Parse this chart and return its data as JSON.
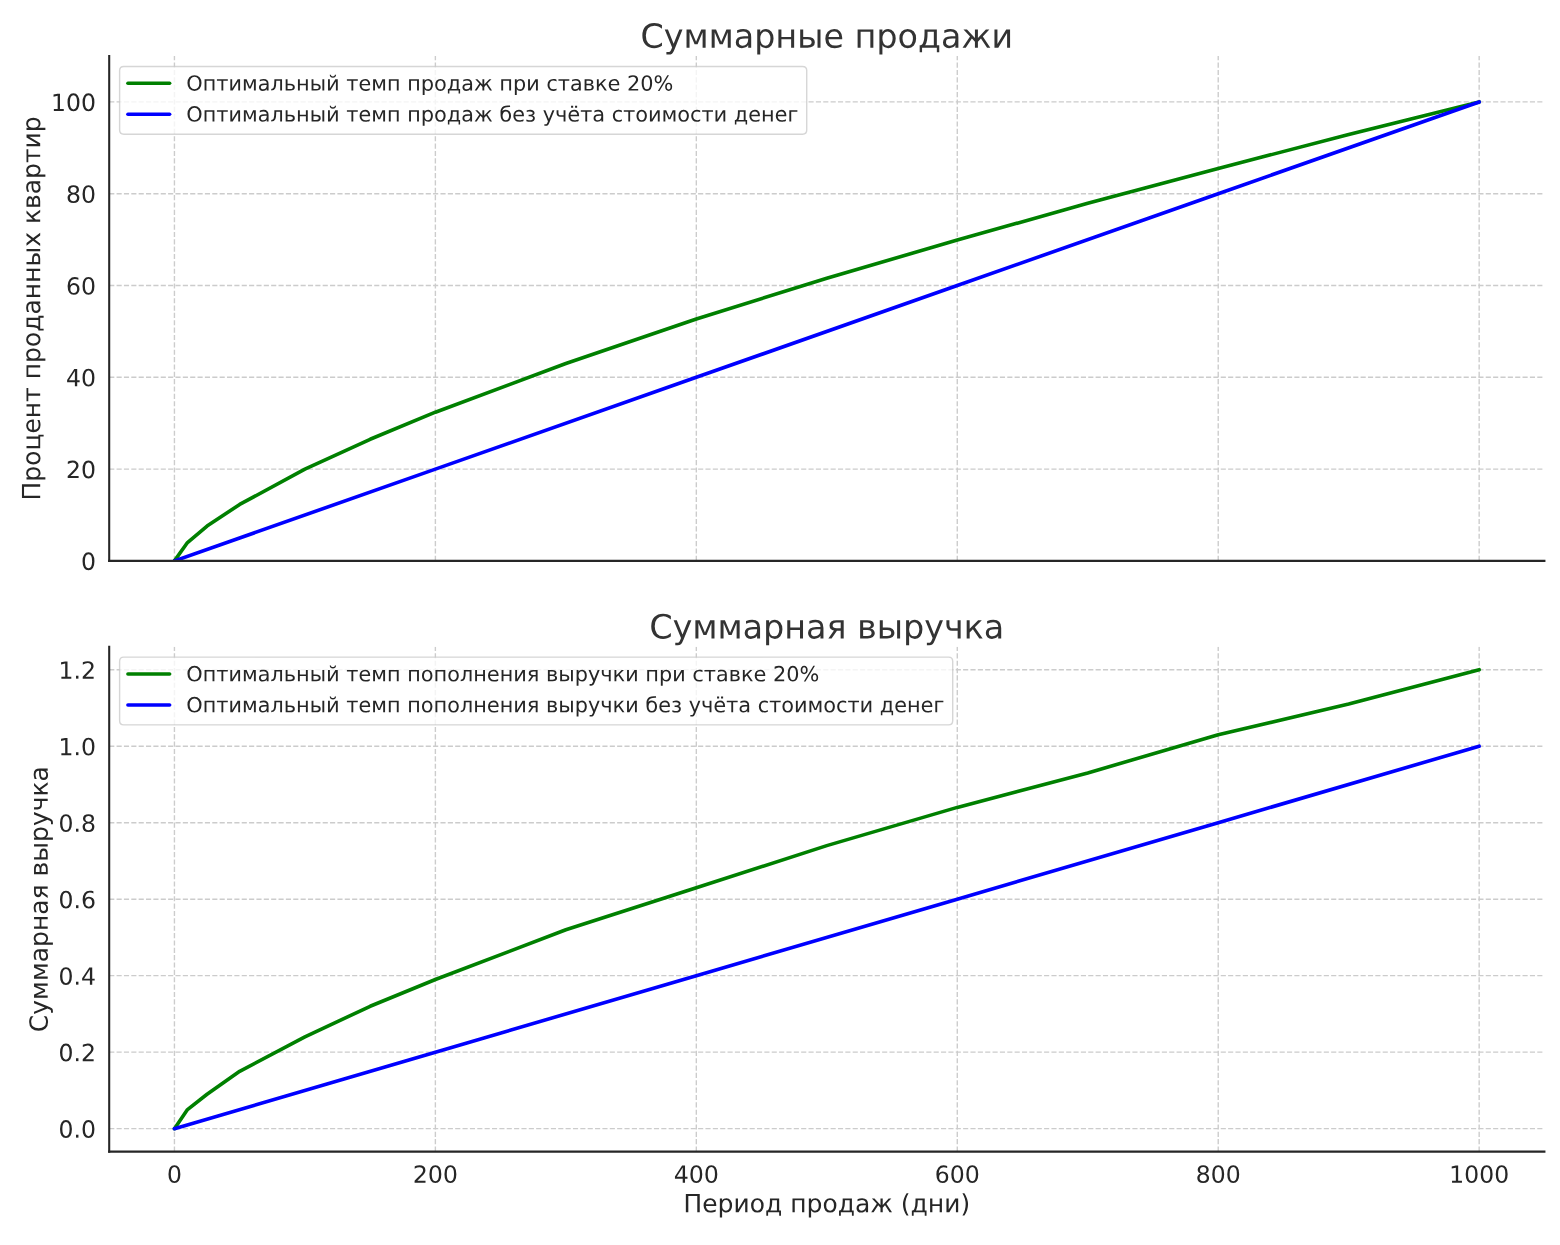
{
  "chart_data": [
    {
      "type": "line",
      "title": "Суммарные продажи",
      "ylabel": "Процент проданных квартир",
      "xlim": [
        -50,
        1050
      ],
      "xticks": [
        0,
        200,
        400,
        600,
        800,
        1000
      ],
      "ylim": [
        0,
        110
      ],
      "yticks": [
        0,
        20,
        40,
        60,
        80,
        100
      ],
      "grid": true,
      "legend": "top left",
      "tick_labels": "y",
      "series": [
        {
          "name": "Оптимальный темп продаж при ставке 20%",
          "color": "#008000",
          "x": [
            0,
            10,
            25,
            50,
            100,
            150,
            200,
            300,
            400,
            500,
            600,
            700,
            800,
            900,
            1000
          ],
          "values": [
            0,
            4.0,
            7.6,
            12.3,
            20.0,
            26.5,
            32.4,
            43.0,
            52.7,
            61.6,
            69.9,
            77.9,
            85.5,
            92.9,
            100
          ]
        },
        {
          "name": "Оптимальный темп продаж без учёта стоимости денег",
          "color": "#0000ff",
          "x": [
            0,
            200,
            400,
            600,
            800,
            1000
          ],
          "values": [
            0,
            20,
            40,
            60,
            80,
            100
          ]
        }
      ]
    },
    {
      "type": "line",
      "title": "Суммарная выручка",
      "xlabel": "Период продаж (дни)",
      "ylabel": "Суммарная выручка",
      "xlim": [
        -50,
        1050
      ],
      "xticks": [
        0,
        200,
        400,
        600,
        800,
        1000
      ],
      "ylim": [
        -0.06,
        1.26
      ],
      "yticks": [
        {
          "value": 0,
          "label": "0.0"
        },
        0.2,
        0.4,
        0.6,
        0.8,
        {
          "value": 1,
          "label": "1.0"
        },
        1.2
      ],
      "grid": true,
      "legend": "top left",
      "series": [
        {
          "name": "Оптимальный темп пополнения выручки при ставке 20%",
          "color": "#008000",
          "x": [
            0,
            10,
            25,
            50,
            100,
            150,
            200,
            300,
            400,
            500,
            600,
            700,
            800,
            900,
            1000
          ],
          "values": [
            0,
            0.05,
            0.09,
            0.15,
            0.24,
            0.32,
            0.39,
            0.52,
            0.63,
            0.74,
            0.84,
            0.93,
            1.03,
            1.11,
            1.2
          ]
        },
        {
          "name": "Оптимальный темп пополнения выручки без учёта стоимости денег",
          "color": "#0000ff",
          "x": [
            0,
            200,
            400,
            600,
            800,
            1000
          ],
          "values": [
            0,
            0.2,
            0.4,
            0.6,
            0.8,
            1.0
          ]
        }
      ]
    }
  ]
}
